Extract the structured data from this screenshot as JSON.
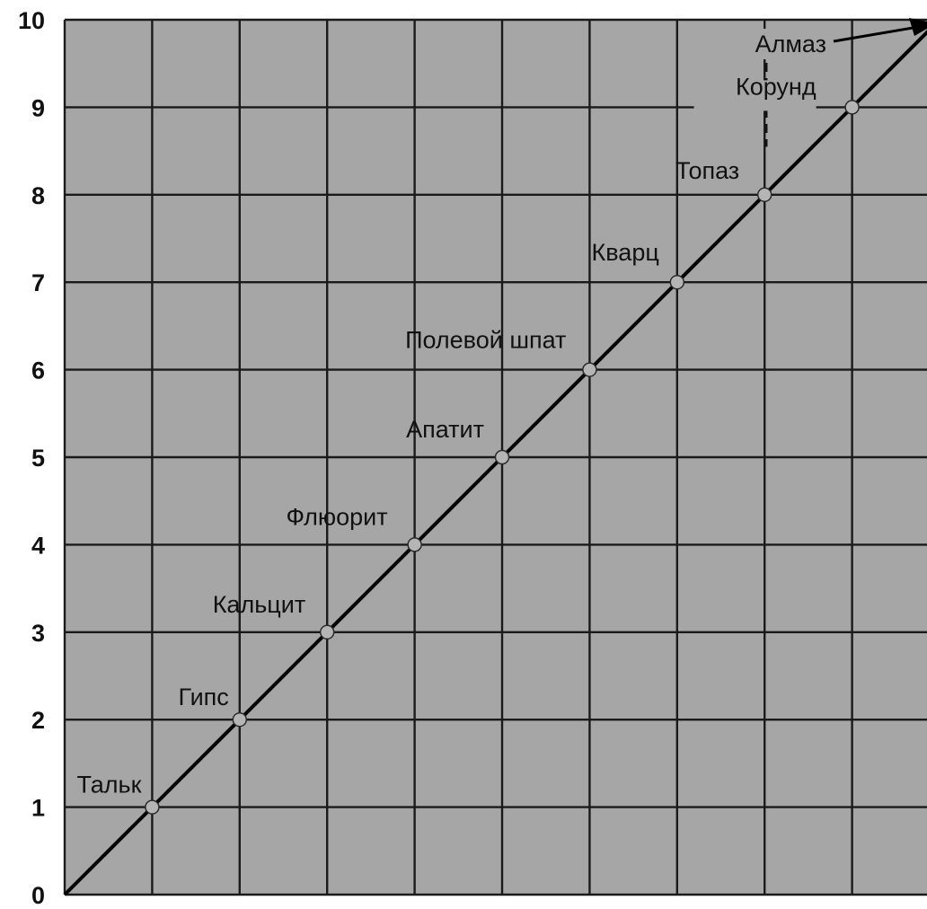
{
  "chart_data": {
    "type": "line",
    "title": "",
    "xlabel": "",
    "ylabel": "",
    "ylim": [
      0,
      10
    ],
    "xlim": [
      0,
      10
    ],
    "grid": true,
    "y_ticks": [
      "0",
      "1",
      "2",
      "3",
      "4",
      "5",
      "6",
      "7",
      "8",
      "9",
      "10"
    ],
    "series": [
      {
        "x": [
          0,
          10
        ],
        "y": [
          0,
          10
        ]
      }
    ],
    "points": [
      {
        "x": 1,
        "y": 1,
        "label": "Тальк"
      },
      {
        "x": 2,
        "y": 2,
        "label": "Гипс"
      },
      {
        "x": 3,
        "y": 3,
        "label": "Кальцит"
      },
      {
        "x": 4,
        "y": 4,
        "label": "Флюорит"
      },
      {
        "x": 5,
        "y": 5,
        "label": "Апатит"
      },
      {
        "x": 6,
        "y": 6,
        "label": "Полевой шпат"
      },
      {
        "x": 7,
        "y": 7,
        "label": "Кварц"
      },
      {
        "x": 8,
        "y": 8,
        "label": "Топаз"
      },
      {
        "x": 9,
        "y": 9,
        "label": "Корунд"
      },
      {
        "x": 10,
        "y": 10,
        "label": "Алмаз"
      }
    ],
    "colors": {
      "plot_background": "#a6a6a6",
      "grid": "#1a1a1a",
      "line": "#000000",
      "marker": "#b5b5b5"
    }
  }
}
